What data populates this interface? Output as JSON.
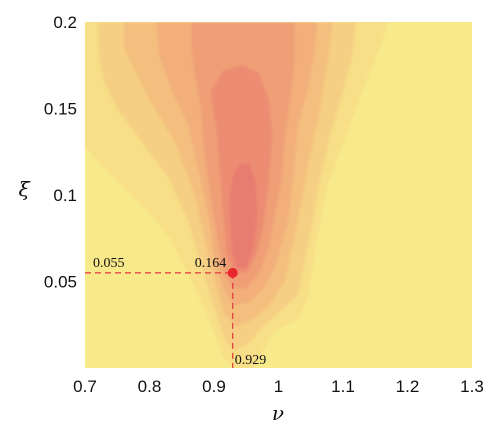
{
  "chart_data": {
    "type": "heatmap",
    "xlabel": "ν",
    "ylabel": "ξ",
    "xlim": [
      0.7,
      1.3
    ],
    "ylim": [
      0.0,
      0.2
    ],
    "x_ticks": [
      "0.7",
      "0.8",
      "0.9",
      "1",
      "1.1",
      "1.2",
      "1.3"
    ],
    "y_ticks": [
      "0.05",
      "0.1",
      "0.15",
      "0.2"
    ],
    "grid": false,
    "colors": {
      "background": "#F8E98A",
      "levels": [
        "#F8E98A",
        "#F7DE87",
        "#F5CF83",
        "#F4BF7E",
        "#F2AF7A",
        "#EF9E76",
        "#EC8C72",
        "#E97C70"
      ],
      "marker": "#E8262B",
      "guide": "#E0383B"
    },
    "optimum": {
      "x": 0.929,
      "y": 0.055,
      "value": 0.164
    },
    "annotations": {
      "x_label": "0.929",
      "y_label": "0.055",
      "value_label": "0.164"
    },
    "contour_levels": [
      {
        "level": 1,
        "pts": [
          [
            0.7,
            0.128
          ],
          [
            0.72,
            0.12
          ],
          [
            0.75,
            0.108
          ],
          [
            0.79,
            0.094
          ],
          [
            0.83,
            0.076
          ],
          [
            0.86,
            0.055
          ],
          [
            0.89,
            0.03
          ],
          [
            0.915,
            0.006
          ],
          [
            0.932,
            0.0
          ],
          [
            0.962,
            0.0
          ],
          [
            0.975,
            0.01
          ],
          [
            0.995,
            0.022
          ],
          [
            1.03,
            0.028
          ],
          [
            1.045,
            0.04
          ],
          [
            1.06,
            0.075
          ],
          [
            1.075,
            0.105
          ],
          [
            1.1,
            0.13
          ],
          [
            1.12,
            0.15
          ],
          [
            1.14,
            0.17
          ],
          [
            1.16,
            0.188
          ],
          [
            1.17,
            0.2
          ],
          [
            0.7,
            0.2
          ]
        ]
      },
      {
        "level": 2,
        "pts": [
          [
            0.72,
            0.2
          ],
          [
            0.722,
            0.18
          ],
          [
            0.73,
            0.165
          ],
          [
            0.75,
            0.15
          ],
          [
            0.79,
            0.13
          ],
          [
            0.83,
            0.11
          ],
          [
            0.86,
            0.085
          ],
          [
            0.88,
            0.06
          ],
          [
            0.9,
            0.035
          ],
          [
            0.918,
            0.016
          ],
          [
            0.932,
            0.01
          ],
          [
            0.955,
            0.015
          ],
          [
            0.975,
            0.024
          ],
          [
            1.0,
            0.032
          ],
          [
            1.03,
            0.042
          ],
          [
            1.05,
            0.08
          ],
          [
            1.065,
            0.11
          ],
          [
            1.08,
            0.135
          ],
          [
            1.1,
            0.16
          ],
          [
            1.115,
            0.182
          ],
          [
            1.12,
            0.2
          ]
        ]
      },
      {
        "level": 3,
        "pts": [
          [
            0.76,
            0.2
          ],
          [
            0.76,
            0.185
          ],
          [
            0.78,
            0.17
          ],
          [
            0.8,
            0.155
          ],
          [
            0.84,
            0.13
          ],
          [
            0.87,
            0.1
          ],
          [
            0.885,
            0.075
          ],
          [
            0.9,
            0.052
          ],
          [
            0.915,
            0.032
          ],
          [
            0.935,
            0.024
          ],
          [
            0.96,
            0.028
          ],
          [
            0.985,
            0.036
          ],
          [
            1.01,
            0.05
          ],
          [
            1.03,
            0.085
          ],
          [
            1.05,
            0.125
          ],
          [
            1.065,
            0.15
          ],
          [
            1.075,
            0.175
          ],
          [
            1.085,
            0.2
          ]
        ]
      },
      {
        "level": 4,
        "pts": [
          [
            0.81,
            0.2
          ],
          [
            0.815,
            0.18
          ],
          [
            0.835,
            0.16
          ],
          [
            0.86,
            0.14
          ],
          [
            0.875,
            0.115
          ],
          [
            0.89,
            0.09
          ],
          [
            0.9,
            0.065
          ],
          [
            0.915,
            0.045
          ],
          [
            0.93,
            0.036
          ],
          [
            0.955,
            0.038
          ],
          [
            0.975,
            0.045
          ],
          [
            0.995,
            0.058
          ],
          [
            1.015,
            0.085
          ],
          [
            1.025,
            0.115
          ],
          [
            1.03,
            0.14
          ],
          [
            1.045,
            0.16
          ],
          [
            1.055,
            0.18
          ],
          [
            1.06,
            0.2
          ]
        ]
      },
      {
        "level": 5,
        "pts": [
          [
            0.865,
            0.2
          ],
          [
            0.865,
            0.185
          ],
          [
            0.87,
            0.17
          ],
          [
            0.88,
            0.15
          ],
          [
            0.885,
            0.125
          ],
          [
            0.895,
            0.1
          ],
          [
            0.905,
            0.075
          ],
          [
            0.915,
            0.055
          ],
          [
            0.93,
            0.046
          ],
          [
            0.95,
            0.046
          ],
          [
            0.97,
            0.055
          ],
          [
            0.985,
            0.07
          ],
          [
            0.995,
            0.09
          ],
          [
            1.005,
            0.11
          ],
          [
            1.01,
            0.135
          ],
          [
            1.02,
            0.16
          ],
          [
            1.025,
            0.18
          ],
          [
            1.025,
            0.2
          ]
        ]
      },
      {
        "level": 6,
        "pts": [
          [
            0.895,
            0.16
          ],
          [
            0.905,
            0.135
          ],
          [
            0.91,
            0.11
          ],
          [
            0.915,
            0.085
          ],
          [
            0.92,
            0.065
          ],
          [
            0.932,
            0.055
          ],
          [
            0.95,
            0.055
          ],
          [
            0.965,
            0.065
          ],
          [
            0.978,
            0.085
          ],
          [
            0.985,
            0.11
          ],
          [
            0.99,
            0.135
          ],
          [
            0.985,
            0.155
          ],
          [
            0.97,
            0.17
          ],
          [
            0.945,
            0.175
          ],
          [
            0.915,
            0.172
          ]
        ]
      },
      {
        "level": 7,
        "pts": [
          [
            0.925,
            0.1
          ],
          [
            0.925,
            0.085
          ],
          [
            0.928,
            0.068
          ],
          [
            0.935,
            0.058
          ],
          [
            0.95,
            0.058
          ],
          [
            0.962,
            0.07
          ],
          [
            0.967,
            0.09
          ],
          [
            0.965,
            0.108
          ],
          [
            0.955,
            0.118
          ],
          [
            0.94,
            0.118
          ],
          [
            0.93,
            0.112
          ]
        ]
      }
    ]
  }
}
